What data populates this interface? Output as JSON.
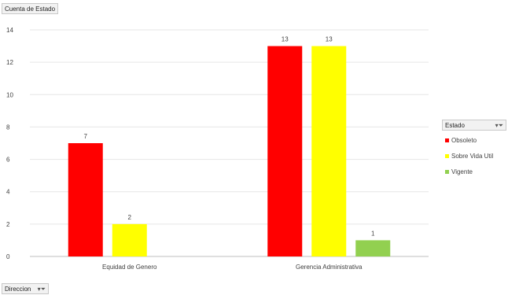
{
  "header_field": {
    "label": "Cuenta de Estado"
  },
  "axis_field": {
    "label": "Direccion",
    "filter_icon": "filter-dropdown-icon"
  },
  "legend": {
    "title": "Estado",
    "filter_icon": "filter-dropdown-icon",
    "items": [
      {
        "label": "Obsoleto",
        "color": "#ff0000"
      },
      {
        "label": "Sobre Vida Util",
        "color": "#ffff00"
      },
      {
        "label": "Vigente",
        "color": "#92d050"
      }
    ]
  },
  "chart_data": {
    "type": "bar",
    "categories": [
      "Equidad de Genero",
      "Gerencia Administrativa"
    ],
    "series": [
      {
        "name": "Obsoleto",
        "color": "#ff0000",
        "values": [
          7,
          13
        ]
      },
      {
        "name": "Sobre Vida Util",
        "color": "#ffff00",
        "values": [
          2,
          13
        ]
      },
      {
        "name": "Vigente",
        "color": "#92d050",
        "values": [
          null,
          1
        ]
      }
    ],
    "ylim": [
      0,
      14
    ],
    "yticks": [
      0,
      2,
      4,
      6,
      8,
      10,
      12,
      14
    ],
    "grid": true,
    "data_labels": true,
    "legend_position": "right"
  }
}
